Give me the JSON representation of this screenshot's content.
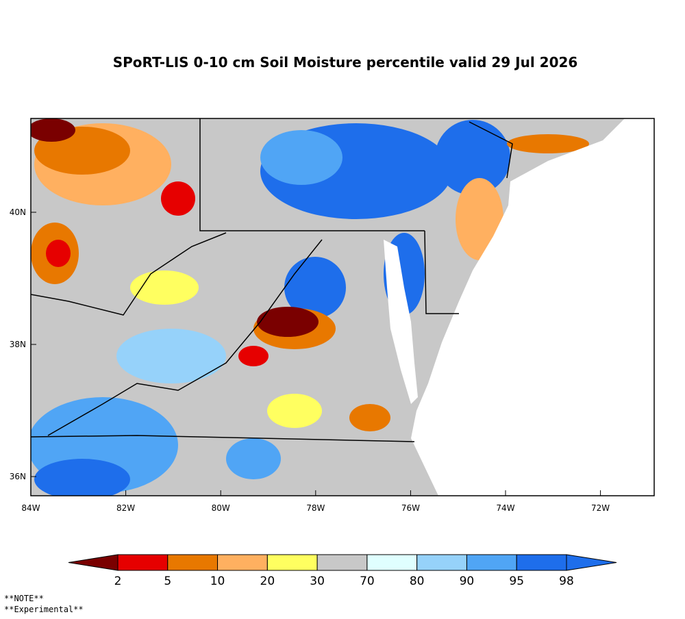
{
  "title": "SPoRT-LIS 0-10 cm Soil Moisture percentile valid 29 Jul 2026",
  "lon_ticks": [
    {
      "value": -84,
      "label": "84W"
    },
    {
      "value": -82,
      "label": "82W"
    },
    {
      "value": -80,
      "label": "80W"
    },
    {
      "value": -78,
      "label": "78W"
    },
    {
      "value": -76,
      "label": "76W"
    },
    {
      "value": -74,
      "label": "74W"
    },
    {
      "value": -72,
      "label": "72W"
    }
  ],
  "lat_ticks": [
    {
      "value": 40,
      "label": "40N"
    },
    {
      "value": 38,
      "label": "38N"
    },
    {
      "value": 36,
      "label": "36N"
    }
  ],
  "colorbar": {
    "ticks": [
      2,
      5,
      10,
      20,
      30,
      70,
      80,
      90,
      95,
      98
    ],
    "colors": [
      "#7a0000",
      "#e60000",
      "#e87800",
      "#ffb060",
      "#ffff60",
      "#c8c8c8",
      "#e0ffff",
      "#96d2fa",
      "#50a5f5",
      "#1e6eeb",
      "#1e6eeb"
    ]
  },
  "notes": [
    "**NOTE**",
    "**Experimental**"
  ]
}
